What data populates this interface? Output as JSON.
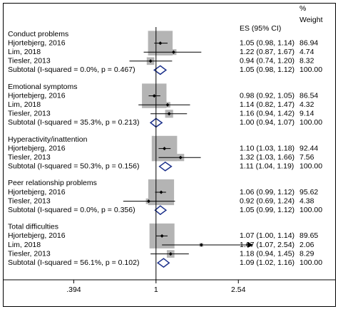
{
  "chart_data": {
    "type": "forest",
    "xscale": "log",
    "xlim": [
      0.178,
      7.6
    ],
    "xticks": [
      {
        "value": 0.394,
        "label": ".394"
      },
      1,
      2.54
    ],
    "null_line": 1,
    "box_color": "#b4b4b4",
    "diamond_color": "#1a2f8a",
    "headers": {
      "es": "ES (95% CI)",
      "weight_top": "%",
      "weight": "Weight"
    },
    "groups": [
      {
        "name": "Conduct problems",
        "studies": [
          {
            "study": "Hjortebjerg, 2016",
            "es": 1.05,
            "lci": 0.98,
            "uci": 1.14,
            "es_label": "1.05 (0.98, 1.14)",
            "weight": 86.94
          },
          {
            "study": "Lim, 2018",
            "es": 1.22,
            "lci": 0.87,
            "uci": 1.67,
            "es_label": "1.22 (0.87, 1.67)",
            "weight": 4.74
          },
          {
            "study": "Tiesler, 2013",
            "es": 0.94,
            "lci": 0.74,
            "uci": 1.2,
            "es_label": "0.94 (0.74, 1.20)",
            "weight": 8.32
          }
        ],
        "subtotal": {
          "label": "Subtotal  (I-squared = 0.0%, p = 0.467)",
          "es": 1.05,
          "lci": 0.98,
          "uci": 1.12,
          "es_label": "1.05 (0.98, 1.12)",
          "weight": {
            "value": 100,
            "label": "100.00"
          }
        }
      },
      {
        "name": "Emotional symptoms",
        "studies": [
          {
            "study": "Hjortebjerg, 2016",
            "es": 0.98,
            "lci": 0.92,
            "uci": 1.05,
            "es_label": "0.98 (0.92, 1.05)",
            "weight": 86.54
          },
          {
            "study": "Lim, 2018",
            "es": 1.14,
            "lci": 0.82,
            "uci": 1.47,
            "es_label": "1.14 (0.82, 1.47)",
            "weight": 4.32
          },
          {
            "study": "Tiesler, 2013",
            "es": 1.16,
            "lci": 0.94,
            "uci": 1.42,
            "es_label": "1.16 (0.94, 1.42)",
            "weight": 9.14
          }
        ],
        "subtotal": {
          "label": "Subtotal  (I-squared = 35.3%, p = 0.213)",
          "es": 1.0,
          "lci": 0.94,
          "uci": 1.07,
          "es_label": "1.00 (0.94, 1.07)",
          "weight": {
            "value": 100,
            "label": "100.00"
          }
        }
      },
      {
        "name": "Hyperactivity/inattention",
        "studies": [
          {
            "study": "Hjortebjerg, 2016",
            "es": 1.1,
            "lci": 1.03,
            "uci": 1.18,
            "es_label": "1.10 (1.03, 1.18)",
            "weight": 92.44
          },
          {
            "study": "Tiesler, 2013",
            "es": 1.32,
            "lci": 1.03,
            "uci": 1.66,
            "es_label": "1.32 (1.03, 1.66)",
            "weight": 7.56
          }
        ],
        "subtotal": {
          "label": "Subtotal  (I-squared = 50.3%, p = 0.156)",
          "es": 1.11,
          "lci": 1.04,
          "uci": 1.19,
          "es_label": "1.11 (1.04, 1.19)",
          "weight": {
            "value": 100,
            "label": "100.00"
          }
        }
      },
      {
        "name": "Peer relationship problems",
        "studies": [
          {
            "study": "Hjortebjerg, 2016",
            "es": 1.06,
            "lci": 0.99,
            "uci": 1.12,
            "es_label": "1.06 (0.99, 1.12)",
            "weight": 95.62
          },
          {
            "study": "Tiesler, 2013",
            "es": 0.92,
            "lci": 0.69,
            "uci": 1.24,
            "es_label": "0.92 (0.69, 1.24)",
            "weight": 4.38
          }
        ],
        "subtotal": {
          "label": "Subtotal  (I-squared = 0.0%, p = 0.356)",
          "es": 1.05,
          "lci": 0.99,
          "uci": 1.12,
          "es_label": "1.05 (0.99, 1.12)",
          "weight": {
            "value": 100,
            "label": "100.00"
          }
        }
      },
      {
        "name": "Total difficulties",
        "studies": [
          {
            "study": "Hjortebjerg, 2016",
            "es": 1.07,
            "lci": 1.0,
            "uci": 1.14,
            "es_label": "1.07 (1.00, 1.14)",
            "weight": 89.65
          },
          {
            "study": "Lim, 2018",
            "es": 1.67,
            "lci": 1.07,
            "uci": 2.54,
            "es_label": "1.67 (1.07, 2.54)",
            "weight": 2.06
          },
          {
            "study": "Tiesler, 2013",
            "es": 1.18,
            "lci": 0.94,
            "uci": 1.45,
            "es_label": "1.18 (0.94, 1.45)",
            "weight": 8.29
          }
        ],
        "subtotal": {
          "label": "Subtotal  (I-squared = 56.1%, p = 0.102)",
          "es": 1.09,
          "lci": 1.02,
          "uci": 1.16,
          "es_label": "1.09 (1.02, 1.16)",
          "weight": {
            "value": 100,
            "label": "100.00"
          }
        }
      }
    ]
  }
}
